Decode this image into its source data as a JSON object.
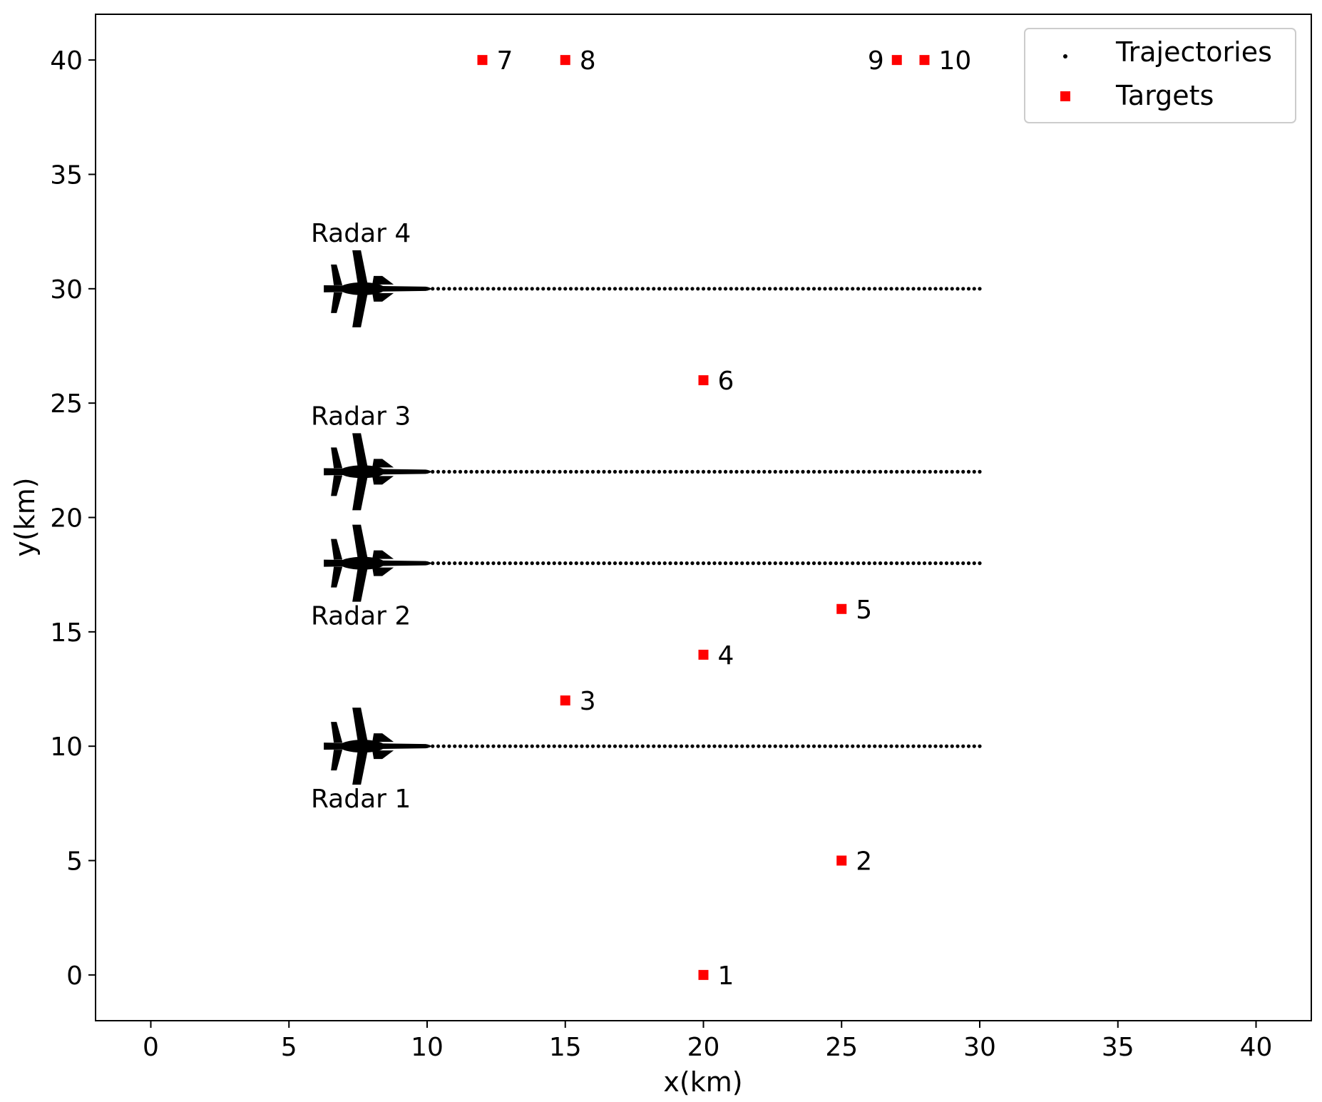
{
  "chart_data": {
    "type": "scatter",
    "xlabel": "x(km)",
    "ylabel": "y(km)",
    "xlim": [
      -2,
      42
    ],
    "ylim": [
      -2,
      42
    ],
    "xticks": [
      0,
      5,
      10,
      15,
      20,
      25,
      30,
      35,
      40
    ],
    "yticks": [
      0,
      5,
      10,
      15,
      20,
      25,
      30,
      35,
      40
    ],
    "grid": false,
    "legend_position": "top-right",
    "legend": [
      {
        "label": "Trajectories",
        "marker": "dot",
        "color": "#000000"
      },
      {
        "label": "Targets",
        "marker": "square",
        "color": "#ff0000"
      }
    ],
    "trajectories": {
      "name": "Trajectories",
      "x_start": 10,
      "x_end": 30,
      "points_per_track": 101,
      "y_values": [
        10,
        18,
        22,
        30
      ],
      "color": "#000000"
    },
    "targets": {
      "name": "Targets",
      "color": "#ff0000",
      "points": [
        {
          "label": "1",
          "x": 20,
          "y": 0
        },
        {
          "label": "2",
          "x": 25,
          "y": 5
        },
        {
          "label": "3",
          "x": 15,
          "y": 12
        },
        {
          "label": "4",
          "x": 20,
          "y": 14
        },
        {
          "label": "5",
          "x": 25,
          "y": 16
        },
        {
          "label": "6",
          "x": 20,
          "y": 26
        },
        {
          "label": "7",
          "x": 12,
          "y": 40
        },
        {
          "label": "8",
          "x": 15,
          "y": 40
        },
        {
          "label": "9",
          "x": 27,
          "y": 40
        },
        {
          "label": "10",
          "x": 28,
          "y": 40
        }
      ]
    },
    "radars": [
      {
        "label": "Radar 1",
        "x": 7.5,
        "y": 10,
        "label_side": "below",
        "icon": "jet-aircraft-icon"
      },
      {
        "label": "Radar 2",
        "x": 7.5,
        "y": 18,
        "label_side": "below",
        "icon": "jet-aircraft-icon"
      },
      {
        "label": "Radar 3",
        "x": 7.5,
        "y": 22,
        "label_side": "above",
        "icon": "jet-aircraft-icon"
      },
      {
        "label": "Radar 4",
        "x": 7.5,
        "y": 30,
        "label_side": "above",
        "icon": "jet-aircraft-icon"
      }
    ]
  }
}
